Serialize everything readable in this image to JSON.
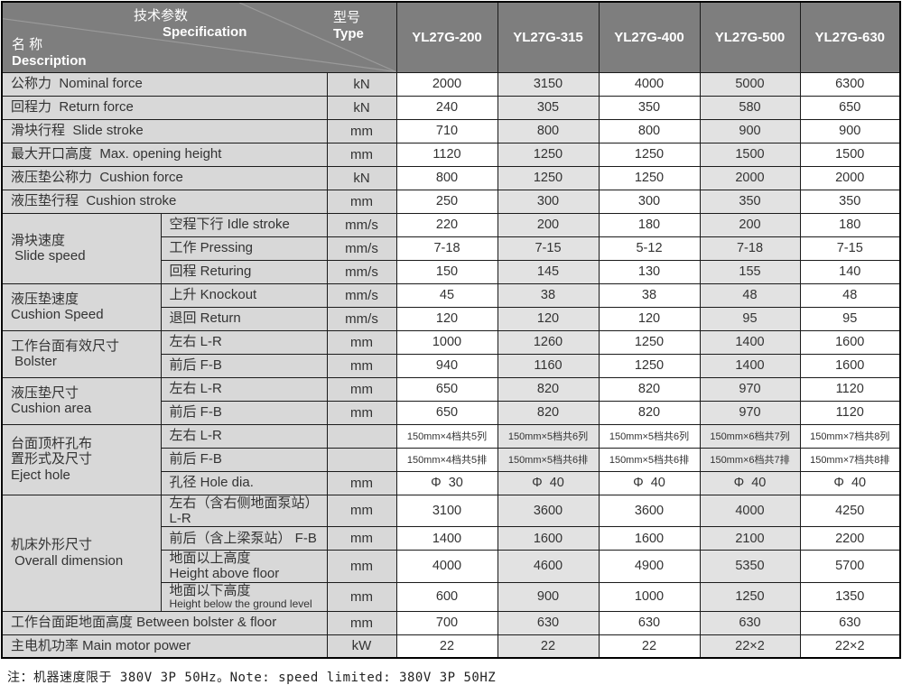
{
  "colors": {
    "header_bg": "#7e7e7e",
    "header_text": "#ffffff",
    "label_bg": "#d8d8d8",
    "shaded_bg": "#e2e2e2",
    "row_bg": "#ffffff",
    "border": "#1b1b1b",
    "text": "#333333"
  },
  "header": {
    "spec_cn": "技术参数",
    "spec_en": "Specification",
    "desc_cn": "名 称",
    "desc_en": "Description",
    "type_cn": "型号",
    "type_en": "Type",
    "models": [
      "YL27G-200",
      "YL27G-315",
      "YL27G-400",
      "YL27G-500",
      "YL27G-630"
    ],
    "shaded_columns": [
      1,
      3
    ]
  },
  "table": {
    "rows": [
      {
        "label": "公称力  Nominal force",
        "unit": "kN",
        "values": [
          "2000",
          "3150",
          "4000",
          "5000",
          "6300"
        ]
      },
      {
        "label": "回程力  Return force",
        "unit": "kN",
        "values": [
          "240",
          "305",
          "350",
          "580",
          "650"
        ]
      },
      {
        "label": "滑块行程  Slide stroke",
        "unit": "mm",
        "values": [
          "710",
          "800",
          "800",
          "900",
          "900"
        ]
      },
      {
        "label": "最大开口高度  Max. opening height",
        "unit": "mm",
        "values": [
          "1120",
          "1250",
          "1250",
          "1500",
          "1500"
        ]
      },
      {
        "label": "液压垫公称力  Cushion force",
        "unit": "kN",
        "values": [
          "800",
          "1250",
          "1250",
          "2000",
          "2000"
        ]
      },
      {
        "label": "液压垫行程  Cushion stroke",
        "unit": "mm",
        "values": [
          "250",
          "300",
          "300",
          "350",
          "350"
        ]
      },
      {
        "group": "滑块速度\n Slide speed",
        "group_span": 3,
        "sub": "空程下行 Idle stroke",
        "unit": "mm/s",
        "values": [
          "220",
          "200",
          "180",
          "200",
          "180"
        ]
      },
      {
        "sub": "工作 Pressing",
        "unit": "mm/s",
        "values": [
          "7-18",
          "7-15",
          "5-12",
          "7-18",
          "7-15"
        ]
      },
      {
        "sub": "回程 Returing",
        "unit": "mm/s",
        "values": [
          "150",
          "145",
          "130",
          "155",
          "140"
        ]
      },
      {
        "group": "液压垫速度\nCushion Speed",
        "group_span": 2,
        "sub": "上升 Knockout",
        "unit": "mm/s",
        "values": [
          "45",
          "38",
          "38",
          "48",
          "48"
        ]
      },
      {
        "sub": "退回 Return",
        "unit": "mm/s",
        "values": [
          "120",
          "120",
          "120",
          "95",
          "95"
        ]
      },
      {
        "group": "工作台面有效尺寸\n Bolster",
        "group_span": 2,
        "sub": "左右 L-R",
        "unit": "mm",
        "values": [
          "1000",
          "1260",
          "1250",
          "1400",
          "1600"
        ]
      },
      {
        "sub": "前后 F-B",
        "unit": "mm",
        "values": [
          "940",
          "1160",
          "1250",
          "1400",
          "1600"
        ]
      },
      {
        "group": "液压垫尺寸\nCushion area",
        "group_span": 2,
        "sub": "左右 L-R",
        "unit": "mm",
        "values": [
          "650",
          "820",
          "820",
          "970",
          "1120"
        ]
      },
      {
        "sub": "前后 F-B",
        "unit": "mm",
        "values": [
          "650",
          "820",
          "820",
          "970",
          "1120"
        ]
      },
      {
        "group": "台面顶杆孔布\n置形式及尺寸\nEject hole",
        "group_span": 3,
        "sub": "左右 L-R",
        "unit": "",
        "values": [
          "150mm×4档共5列",
          "150mm×5档共6列",
          "150mm×5档共6列",
          "150mm×6档共7列",
          "150mm×7档共8列"
        ]
      },
      {
        "sub": "前后 F-B",
        "unit": "",
        "values": [
          "150mm×4档共5排",
          "150mm×5档共6排",
          "150mm×5档共6排",
          "150mm×6档共7排",
          "150mm×7档共8排"
        ]
      },
      {
        "sub": "孔径 Hole dia.",
        "unit": "mm",
        "values": [
          "Φ  30",
          "Φ  40",
          "Φ  40",
          "Φ  40",
          "Φ  40"
        ]
      },
      {
        "group": "机床外形尺寸\n Overall dimension",
        "group_span": 4,
        "sub": "左右（含右侧地面泵站） L-R",
        "unit": "mm",
        "values": [
          "3100",
          "3600",
          "3600",
          "4000",
          "4250"
        ]
      },
      {
        "sub": "前后（含上梁泵站） F-B",
        "unit": "mm",
        "values": [
          "1400",
          "1600",
          "1600",
          "2100",
          "2200"
        ]
      },
      {
        "sub": "地面以上高度\nHeight above floor",
        "unit": "mm",
        "values": [
          "4000",
          "4600",
          "4900",
          "5350",
          "5700"
        ]
      },
      {
        "sub": "地面以下高度\nHeight below the ground level",
        "unit": "mm",
        "values": [
          "600",
          "900",
          "1000",
          "1250",
          "1350"
        ]
      },
      {
        "label": "工作台面距地面高度 Between bolster & floor",
        "unit": "mm",
        "values": [
          "700",
          "630",
          "630",
          "630",
          "630"
        ]
      },
      {
        "label": "主电机功率 Main motor power",
        "unit": "kW",
        "values": [
          "22",
          "22",
          "22",
          "22×2",
          "22×2"
        ]
      }
    ]
  },
  "note": "注：机器速度限于 380V 3P 50Hz。Note: speed limited: 380V 3P 50HZ"
}
